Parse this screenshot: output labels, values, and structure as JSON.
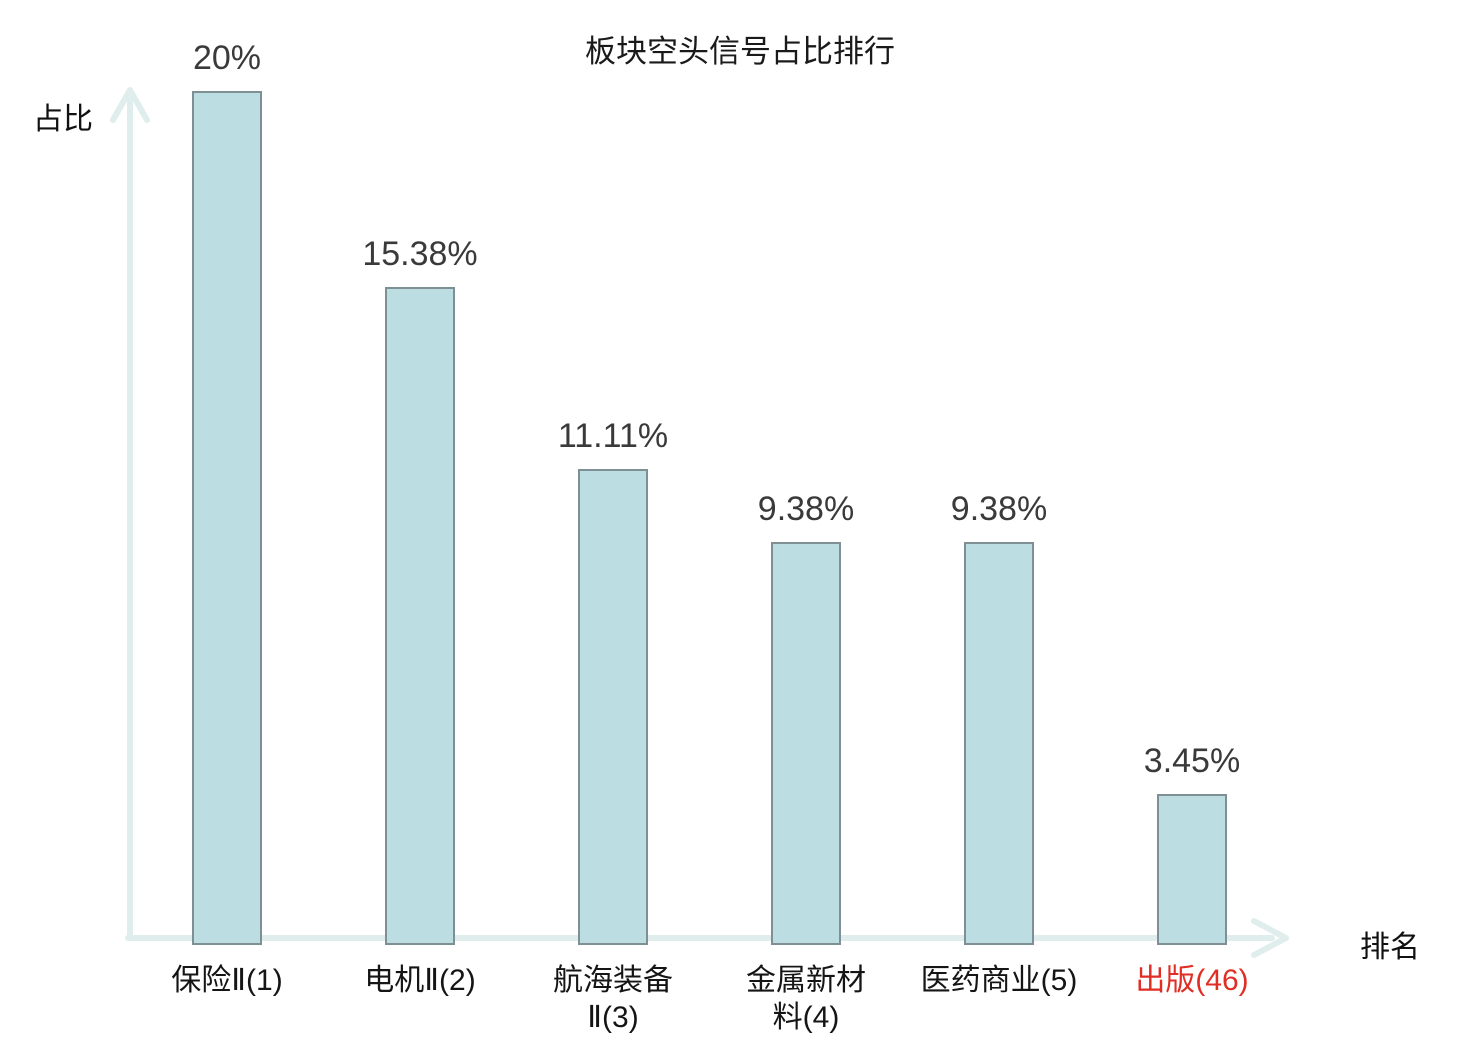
{
  "title": "板块空头信号占比排行",
  "axes": {
    "y_label": "占比",
    "x_label": "排名"
  },
  "colors": {
    "bar_fill": "#bcdee3",
    "bar_border": "#7e9094",
    "axis_line": "#dfeeec",
    "value_text": "#3a3a3a",
    "category_text": "#151515",
    "highlight_text": "#e02e24"
  },
  "chart_data": {
    "type": "bar",
    "title": "板块空头信号占比排行",
    "xlabel": "排名",
    "ylabel": "占比",
    "grid": false,
    "legend": "none",
    "ylim": [
      0,
      21
    ],
    "categories": [
      "保险Ⅱ(1)",
      "电机Ⅱ(2)",
      "航海装备Ⅱ(3)",
      "金属新材料(4)",
      "医药商业(5)",
      "出版(46)"
    ],
    "values": [
      20,
      15.38,
      11.11,
      9.38,
      9.38,
      3.45
    ],
    "bars": [
      {
        "category": "保险Ⅱ(1)",
        "category_lines": [
          "保险Ⅱ(1)"
        ],
        "rank": 1,
        "value": 20,
        "value_label": "20%",
        "highlight": false
      },
      {
        "category": "电机Ⅱ(2)",
        "category_lines": [
          "电机Ⅱ(2)"
        ],
        "rank": 2,
        "value": 15.38,
        "value_label": "15.38%",
        "highlight": false
      },
      {
        "category": "航海装备Ⅱ(3)",
        "category_lines": [
          "航海装备",
          "Ⅱ(3)"
        ],
        "rank": 3,
        "value": 11.11,
        "value_label": "11.11%",
        "highlight": false
      },
      {
        "category": "金属新材料(4)",
        "category_lines": [
          "金属新材",
          "料(4)"
        ],
        "rank": 4,
        "value": 9.38,
        "value_label": "9.38%",
        "highlight": false
      },
      {
        "category": "医药商业(5)",
        "category_lines": [
          "医药商业(5)"
        ],
        "rank": 5,
        "value": 9.38,
        "value_label": "9.38%",
        "highlight": false
      },
      {
        "category": "出版(46)",
        "category_lines": [
          "出版(46)"
        ],
        "rank": 46,
        "value": 3.45,
        "value_label": "3.45%",
        "highlight": true
      }
    ]
  }
}
